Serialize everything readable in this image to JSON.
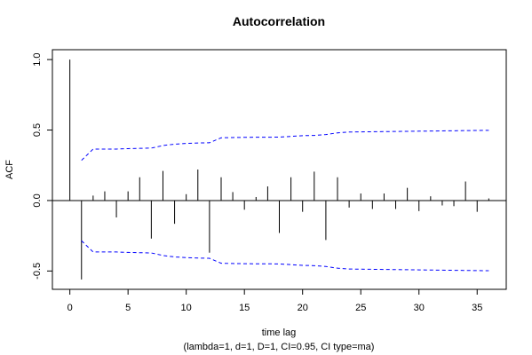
{
  "chart_data": {
    "type": "bar",
    "title": "Autocorrelation",
    "xlabel": "time lag",
    "sublabel": "(lambda=1, d=1, D=1, CI=0.95, CI type=ma)",
    "ylabel": "ACF",
    "xlim": [
      -1.5,
      37.5
    ],
    "ylim": [
      -0.63,
      1.07
    ],
    "xticks": [
      0,
      5,
      10,
      15,
      20,
      25,
      30,
      35
    ],
    "yticks": [
      -0.5,
      0.0,
      0.5,
      1.0
    ],
    "ytick_labels": [
      "-0.5",
      "0.0",
      "0.5",
      "1.0"
    ],
    "lags": [
      0,
      1,
      2,
      3,
      4,
      5,
      6,
      7,
      8,
      9,
      10,
      11,
      12,
      13,
      14,
      15,
      16,
      17,
      18,
      19,
      20,
      21,
      22,
      23,
      24,
      25,
      26,
      27,
      28,
      29,
      30,
      31,
      32,
      33,
      34,
      35,
      36
    ],
    "acf": [
      1.0,
      -0.56,
      0.035,
      0.065,
      -0.12,
      0.065,
      0.165,
      -0.27,
      0.21,
      -0.165,
      0.045,
      0.22,
      -0.37,
      0.165,
      0.06,
      -0.065,
      0.025,
      0.1,
      -0.23,
      0.165,
      -0.08,
      0.205,
      -0.28,
      0.165,
      -0.05,
      0.05,
      -0.06,
      0.05,
      -0.06,
      0.09,
      -0.075,
      0.03,
      -0.035,
      -0.04,
      0.135,
      -0.08,
      0.015
    ],
    "ci_lags": [
      1,
      2,
      3,
      4,
      5,
      6,
      7,
      8,
      9,
      10,
      11,
      12,
      13,
      14,
      15,
      16,
      17,
      18,
      19,
      20,
      21,
      22,
      23,
      24,
      25,
      26,
      27,
      28,
      29,
      30,
      31,
      32,
      33,
      34,
      35,
      36
    ],
    "ci_upper": [
      0.285,
      0.365,
      0.365,
      0.365,
      0.368,
      0.37,
      0.372,
      0.39,
      0.4,
      0.405,
      0.408,
      0.41,
      0.445,
      0.447,
      0.448,
      0.449,
      0.449,
      0.45,
      0.455,
      0.46,
      0.462,
      0.468,
      0.48,
      0.486,
      0.487,
      0.488,
      0.489,
      0.49,
      0.491,
      0.492,
      0.493,
      0.494,
      0.495,
      0.496,
      0.497,
      0.498
    ],
    "ci_lower": [
      -0.285,
      -0.365,
      -0.365,
      -0.365,
      -0.368,
      -0.37,
      -0.372,
      -0.39,
      -0.4,
      -0.405,
      -0.408,
      -0.41,
      -0.445,
      -0.447,
      -0.448,
      -0.449,
      -0.449,
      -0.45,
      -0.455,
      -0.46,
      -0.462,
      -0.468,
      -0.48,
      -0.486,
      -0.487,
      -0.488,
      -0.489,
      -0.49,
      -0.491,
      -0.492,
      -0.493,
      -0.494,
      -0.495,
      -0.496,
      -0.497,
      -0.498
    ],
    "bar_color": "#000000",
    "ci_color": "#0000ff",
    "grid": false
  }
}
